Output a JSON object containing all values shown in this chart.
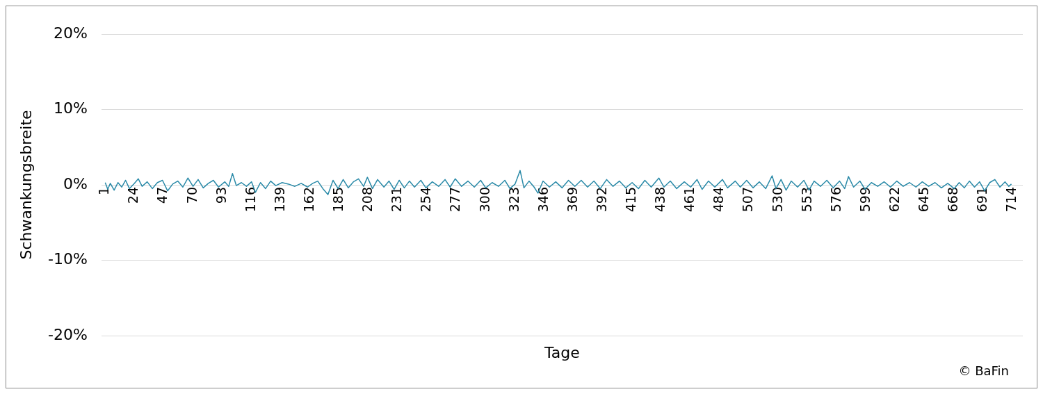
{
  "chart_data": {
    "type": "line",
    "xlabel": "Tage",
    "ylabel": "Schwankungsbreite",
    "annotations": [
      "© BaFin"
    ],
    "xlim": [
      -2,
      722
    ],
    "xticks": [
      1,
      24,
      47,
      70,
      93,
      116,
      139,
      162,
      185,
      208,
      231,
      254,
      277,
      300,
      323,
      346,
      369,
      392,
      415,
      438,
      461,
      484,
      507,
      530,
      553,
      576,
      599,
      622,
      645,
      668,
      691,
      714
    ],
    "ylim": [
      -20,
      20
    ],
    "yticks": [
      {
        "value": -20,
        "label": "-20%"
      },
      {
        "value": -10,
        "label": "-10%"
      },
      {
        "value": 0,
        "label": "0%"
      },
      {
        "value": 10,
        "label": "10%"
      },
      {
        "value": 20,
        "label": "20%"
      }
    ],
    "grid": "y",
    "legend": false,
    "marker": "none",
    "line_style": "solid",
    "series": [
      {
        "color": "#2a8aa8",
        "x": [
          1,
          3,
          5,
          8,
          11,
          14,
          17,
          20,
          24,
          27,
          30,
          34,
          38,
          42,
          46,
          50,
          54,
          58,
          62,
          66,
          70,
          74,
          78,
          82,
          86,
          90,
          95,
          98,
          101,
          104,
          108,
          112,
          116,
          119,
          123,
          127,
          131,
          135,
          140,
          145,
          150,
          155,
          160,
          164,
          168,
          172,
          176,
          180,
          184,
          188,
          192,
          196,
          200,
          204,
          207,
          211,
          215,
          220,
          224,
          228,
          232,
          236,
          240,
          244,
          249,
          253,
          258,
          263,
          268,
          272,
          276,
          281,
          286,
          291,
          296,
          300,
          305,
          310,
          315,
          319,
          323,
          327,
          330,
          334,
          338,
          341,
          345,
          350,
          355,
          360,
          365,
          370,
          375,
          380,
          385,
          390,
          395,
          400,
          405,
          410,
          415,
          420,
          425,
          430,
          436,
          440,
          445,
          450,
          456,
          461,
          466,
          470,
          475,
          480,
          486,
          490,
          496,
          500,
          505,
          510,
          515,
          520,
          525,
          528,
          532,
          536,
          540,
          545,
          550,
          554,
          558,
          563,
          568,
          573,
          578,
          582,
          585,
          589,
          594,
          598,
          603,
          608,
          613,
          618,
          623,
          628,
          633,
          638,
          643,
          648,
          653,
          658,
          663,
          668,
          672,
          676,
          680,
          684,
          688,
          692,
          696,
          700,
          704,
          708,
          711,
          713
        ],
        "values": [
          0.3,
          -0.6,
          0.2,
          -0.7,
          0.3,
          -0.3,
          0.6,
          -0.5,
          0.2,
          0.8,
          -0.2,
          0.4,
          -0.5,
          0.3,
          0.6,
          -0.8,
          0.1,
          0.5,
          -0.3,
          0.9,
          -0.2,
          0.7,
          -0.4,
          0.2,
          0.6,
          -0.3,
          0.4,
          -0.2,
          1.5,
          -0.1,
          0.3,
          -0.2,
          0.4,
          -1.0,
          0.3,
          -0.5,
          0.5,
          -0.1,
          0.3,
          0.1,
          -0.2,
          0.2,
          -0.3,
          0.2,
          0.5,
          -0.5,
          -1.3,
          0.6,
          -0.5,
          0.7,
          -0.4,
          0.4,
          0.8,
          -0.2,
          1.0,
          -0.5,
          0.7,
          -0.3,
          0.5,
          -0.6,
          0.6,
          -0.4,
          0.5,
          -0.3,
          0.6,
          -0.4,
          0.4,
          -0.2,
          0.7,
          -0.3,
          0.8,
          -0.2,
          0.5,
          -0.3,
          0.6,
          -0.4,
          0.3,
          -0.2,
          0.6,
          -0.5,
          0.1,
          1.9,
          -0.4,
          0.5,
          -0.3,
          -1.1,
          0.5,
          -0.3,
          0.4,
          -0.4,
          0.6,
          -0.2,
          0.6,
          -0.3,
          0.5,
          -0.5,
          0.7,
          -0.2,
          0.5,
          -0.4,
          0.3,
          -0.5,
          0.6,
          -0.3,
          0.9,
          -0.3,
          0.5,
          -0.5,
          0.4,
          -0.3,
          0.7,
          -0.6,
          0.5,
          -0.3,
          0.7,
          -0.4,
          0.5,
          -0.3,
          0.6,
          -0.4,
          0.4,
          -0.5,
          1.2,
          -0.5,
          0.7,
          -0.7,
          0.5,
          -0.3,
          0.6,
          -0.7,
          0.5,
          -0.2,
          0.6,
          -0.4,
          0.5,
          -0.5,
          1.1,
          -0.3,
          0.5,
          -0.6,
          0.3,
          -0.2,
          0.4,
          -0.3,
          0.5,
          -0.2,
          0.3,
          -0.3,
          0.4,
          -0.2,
          0.3,
          -0.4,
          0.2,
          -0.5,
          0.3,
          -0.4,
          0.5,
          -0.3,
          0.4,
          -0.8,
          0.3,
          0.7,
          -0.3,
          0.4,
          -0.2,
          0.1
        ]
      }
    ]
  }
}
